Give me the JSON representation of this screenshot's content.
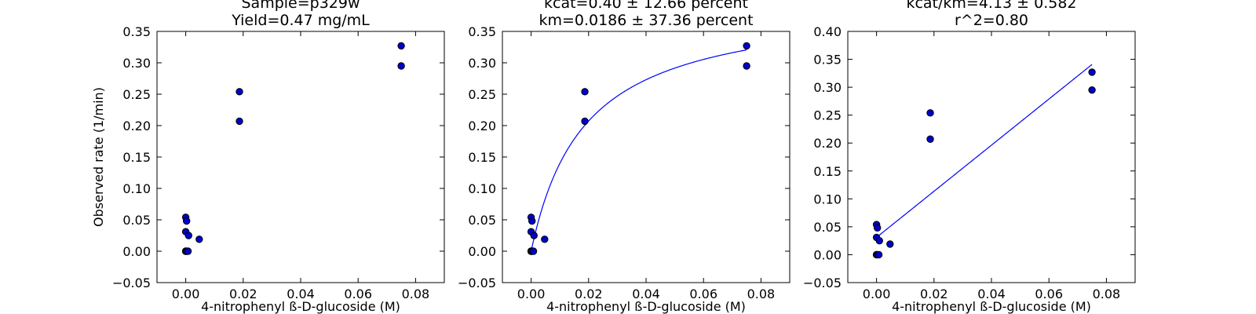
{
  "chart_data": [
    {
      "type": "scatter",
      "title_lines": [
        "Sample=p329w",
        "Yield=0.47 mg/mL"
      ],
      "xlabel": "4-nitrophenyl ß-D-glucoside (M)",
      "ylabel": "Observed rate (1/min)",
      "xlim": [
        -0.01,
        0.09
      ],
      "ylim": [
        -0.05,
        0.35
      ],
      "xticks": [
        0.0,
        0.02,
        0.04,
        0.06,
        0.08
      ],
      "xtick_labels": [
        "0.00",
        "0.02",
        "0.04",
        "0.06",
        "0.08"
      ],
      "yticks": [
        -0.05,
        0.0,
        0.05,
        0.1,
        0.15,
        0.2,
        0.25,
        0.3,
        0.35
      ],
      "ytick_labels": [
        "−0.05",
        "0.00",
        "0.05",
        "0.10",
        "0.15",
        "0.20",
        "0.25",
        "0.30",
        "0.35"
      ],
      "points": [
        {
          "x": 0.0,
          "y": 0.0
        },
        {
          "x": 0.0,
          "y": 0.0
        },
        {
          "x": 0.0003,
          "y": 0.0
        },
        {
          "x": 0.0008,
          "y": 0.0
        },
        {
          "x": 0.0,
          "y": 0.054
        },
        {
          "x": 0.0003,
          "y": 0.048
        },
        {
          "x": 0.0,
          "y": 0.031
        },
        {
          "x": 0.001,
          "y": 0.025
        },
        {
          "x": 0.0047,
          "y": 0.019
        },
        {
          "x": 0.0187,
          "y": 0.254
        },
        {
          "x": 0.0187,
          "y": 0.207
        },
        {
          "x": 0.075,
          "y": 0.327
        },
        {
          "x": 0.075,
          "y": 0.295
        }
      ],
      "fit": null,
      "grid": false
    },
    {
      "type": "scatter",
      "title_lines": [
        "kcat=0.40 ± 12.66 percent",
        "km=0.0186 ± 37.36 percent"
      ],
      "xlabel": "4-nitrophenyl ß-D-glucoside (M)",
      "ylabel": "",
      "xlim": [
        -0.01,
        0.09
      ],
      "ylim": [
        -0.05,
        0.35
      ],
      "xticks": [
        0.0,
        0.02,
        0.04,
        0.06,
        0.08
      ],
      "xtick_labels": [
        "0.00",
        "0.02",
        "0.04",
        "0.06",
        "0.08"
      ],
      "yticks": [
        -0.05,
        0.0,
        0.05,
        0.1,
        0.15,
        0.2,
        0.25,
        0.3,
        0.35
      ],
      "ytick_labels": [
        "−0.05",
        "0.00",
        "0.05",
        "0.10",
        "0.15",
        "0.20",
        "0.25",
        "0.30",
        "0.35"
      ],
      "points": [
        {
          "x": 0.0,
          "y": 0.0
        },
        {
          "x": 0.0,
          "y": 0.0
        },
        {
          "x": 0.0003,
          "y": 0.0
        },
        {
          "x": 0.0008,
          "y": 0.0
        },
        {
          "x": 0.0,
          "y": 0.054
        },
        {
          "x": 0.0003,
          "y": 0.048
        },
        {
          "x": 0.0,
          "y": 0.031
        },
        {
          "x": 0.001,
          "y": 0.025
        },
        {
          "x": 0.0047,
          "y": 0.019
        },
        {
          "x": 0.0187,
          "y": 0.254
        },
        {
          "x": 0.0187,
          "y": 0.207
        },
        {
          "x": 0.075,
          "y": 0.327
        },
        {
          "x": 0.075,
          "y": 0.295
        }
      ],
      "fit": {
        "kind": "michaelis-menten",
        "vmax": 0.4,
        "km": 0.0186,
        "x_range": [
          0.0,
          0.075
        ]
      },
      "grid": false
    },
    {
      "type": "scatter",
      "title_lines": [
        "kcat/km=4.13 ± 0.582",
        "r^2=0.80"
      ],
      "xlabel": "4-nitrophenyl ß-D-glucoside (M)",
      "ylabel": "",
      "xlim": [
        -0.01,
        0.09
      ],
      "ylim": [
        -0.05,
        0.4
      ],
      "xticks": [
        0.0,
        0.02,
        0.04,
        0.06,
        0.08
      ],
      "xtick_labels": [
        "0.00",
        "0.02",
        "0.04",
        "0.06",
        "0.08"
      ],
      "yticks": [
        -0.05,
        0.0,
        0.05,
        0.1,
        0.15,
        0.2,
        0.25,
        0.3,
        0.35,
        0.4
      ],
      "ytick_labels": [
        "−0.05",
        "0.00",
        "0.05",
        "0.10",
        "0.15",
        "0.20",
        "0.25",
        "0.30",
        "0.35",
        "0.40"
      ],
      "points": [
        {
          "x": 0.0,
          "y": 0.0
        },
        {
          "x": 0.0,
          "y": 0.0
        },
        {
          "x": 0.0003,
          "y": 0.0
        },
        {
          "x": 0.0008,
          "y": 0.0
        },
        {
          "x": 0.0,
          "y": 0.054
        },
        {
          "x": 0.0003,
          "y": 0.048
        },
        {
          "x": 0.0,
          "y": 0.031
        },
        {
          "x": 0.001,
          "y": 0.025
        },
        {
          "x": 0.0047,
          "y": 0.019
        },
        {
          "x": 0.0187,
          "y": 0.254
        },
        {
          "x": 0.0187,
          "y": 0.207
        },
        {
          "x": 0.075,
          "y": 0.327
        },
        {
          "x": 0.075,
          "y": 0.295
        }
      ],
      "fit": {
        "kind": "linear",
        "slope": 4.13,
        "intercept": 0.031,
        "x_range": [
          0.0,
          0.075
        ]
      },
      "grid": false
    }
  ]
}
